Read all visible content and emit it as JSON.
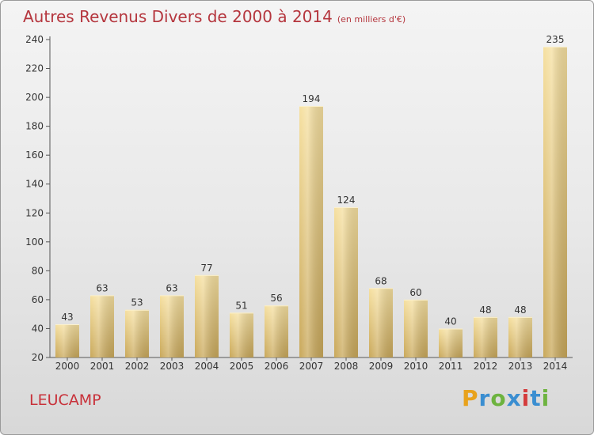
{
  "title": "Autres Revenus Divers de 2000 à 2014",
  "subtitle": "(en milliers d'€)",
  "commune": "LEUCAMP",
  "logo": {
    "p": "P",
    "r": "r",
    "o": "o",
    "x": "x",
    "i1": "i",
    "t": "t",
    "i2": "i"
  },
  "colors": {
    "bar_light": "#f6e0a0",
    "bar_dark": "#c9a85a",
    "title": "#b5363e",
    "axis": "#555555",
    "grid": "#bdbdbd"
  },
  "chart_data": {
    "type": "bar",
    "title": "Autres Revenus Divers de 2000 à 2014",
    "subtitle": "(en milliers d'€)",
    "categories": [
      "2000",
      "2001",
      "2002",
      "2003",
      "2004",
      "2005",
      "2006",
      "2007",
      "2008",
      "2009",
      "2010",
      "2011",
      "2012",
      "2013",
      "2014"
    ],
    "values": [
      43,
      63,
      53,
      63,
      77,
      51,
      56,
      194,
      124,
      68,
      60,
      40,
      48,
      48,
      235
    ],
    "ylim": [
      20,
      240
    ],
    "yticks": [
      20,
      40,
      60,
      80,
      100,
      120,
      140,
      160,
      180,
      200,
      220,
      240
    ],
    "grid": false
  }
}
